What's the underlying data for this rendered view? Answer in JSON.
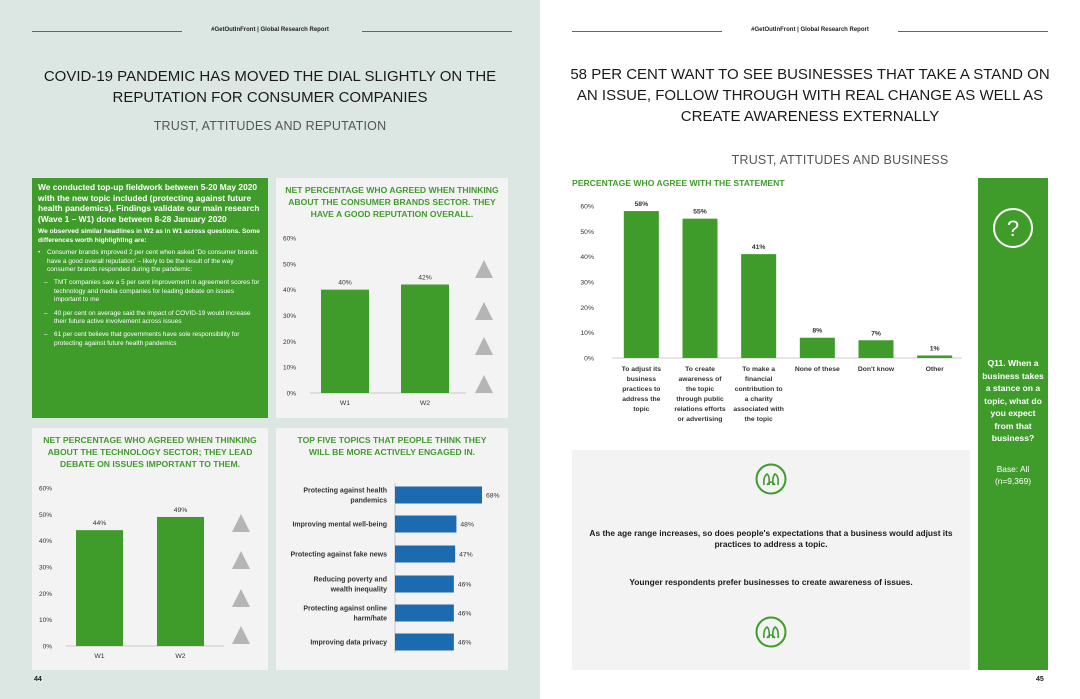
{
  "header": {
    "left": "#GetOutInFront | Global Research Report",
    "right": "#GetOutInFront | Global Research Report"
  },
  "left": {
    "title_line1": "COVID-19 PANDEMIC HAS MOVED THE DIAL SLIGHTLY ON THE",
    "title_line2": "REPUTATION FOR CONSUMER COMPANIES",
    "section": "TRUST, ATTITUDES AND REPUTATION",
    "page_number": "44",
    "box": {
      "intro": "We conducted top-up fieldwork between 5-20 May 2020 with the new topic included (protecting against future health pandemics). Findings validate our main research (Wave 1 – W1) done between 8-28 January 2020",
      "subhead": "We observed similar headlines in W2 as in W1 across questions. Some differences worth highlighting are:",
      "bullet": "Consumer brands improved 2 per cent when asked 'Do consumer brands have a good overall reputation' – likely to be the result of the way consumer brands responded during the pandemic:",
      "sub1": "TMT companies saw a 5 per cent improvement in agreement scores for technology and media companies for leading debate on issues important to me",
      "sub2": "40 per cent on average said the impact of COVID-19 would increase their future active involvement across issues",
      "sub3": "61 per cent believe that governments have sole responsibility for protecting against future health pandemics"
    }
  },
  "right": {
    "title_line1": "58 PER CENT WANT TO SEE BUSINESSES THAT TAKE A STAND ON",
    "title_line2": "AN ISSUE, FOLLOW THROUGH WITH REAL CHANGE AS WELL AS",
    "title_line3": "CREATE AWARENESS EXTERNALLY",
    "section": "TRUST, ATTITUDES AND BUSINESS",
    "page_number": "45",
    "insight1": "As the age range increases, so does people's expectations that a business would adjust its practices to address a topic.",
    "insight2": "Younger respondents prefer businesses to create awareness of issues.",
    "question": "Q11. When a business takes a stance on a topic, what do you expect from that business?",
    "base": "Base: All (n=9,369)"
  },
  "colors": {
    "green": "#3f9c2b",
    "blue": "#1c6bb0",
    "panel": "#f3f3f3",
    "arrow": "#b5b5b5"
  },
  "icons": [
    "question-mark-icon",
    "people-icon",
    "up-arrow-icon"
  ],
  "chart_data": [
    {
      "id": "consumer",
      "type": "bar",
      "title": "NET PERCENTAGE WHO AGREED WHEN THINKING ABOUT THE CONSUMER BRANDS SECTOR. THEY HAVE A GOOD REPUTATION OVERALL.",
      "categories": [
        "W1",
        "W2"
      ],
      "values": [
        40,
        42
      ],
      "value_labels": [
        "40%",
        "42%"
      ],
      "yticks": [
        "0%",
        "10%",
        "20%",
        "30%",
        "40%",
        "50%",
        "60%"
      ],
      "ylim": [
        0,
        60
      ]
    },
    {
      "id": "technology",
      "type": "bar",
      "title": "NET PERCENTAGE WHO AGREED WHEN THINKING ABOUT THE TECHNOLOGY SECTOR; THEY LEAD DEBATE ON ISSUES IMPORTANT TO THEM.",
      "categories": [
        "W1",
        "W2"
      ],
      "values": [
        44,
        49
      ],
      "value_labels": [
        "44%",
        "49%"
      ],
      "yticks": [
        "0%",
        "10%",
        "20%",
        "30%",
        "40%",
        "50%",
        "60%"
      ],
      "ylim": [
        0,
        60
      ]
    },
    {
      "id": "topics",
      "type": "bar",
      "orientation": "horizontal",
      "title": "TOP FIVE TOPICS THAT PEOPLE THINK THEY WILL BE MORE ACTIVELY ENGAGED IN.",
      "categories": [
        [
          "Protecting against health",
          "pandemics"
        ],
        [
          "Improving mental well-being"
        ],
        [
          "Protecting against fake news"
        ],
        [
          "Reducing poverty and",
          "wealth inequality"
        ],
        [
          "Protecting against online",
          "harm/hate"
        ],
        [
          "Improving data privacy"
        ]
      ],
      "values": [
        68,
        48,
        47,
        46,
        46,
        46
      ],
      "value_labels": [
        "68%",
        "48%",
        "47%",
        "46%",
        "46%",
        "46%"
      ],
      "xlim": [
        0,
        68
      ]
    },
    {
      "id": "statement",
      "type": "bar",
      "title": "PERCENTAGE WHO AGREE WITH THE STATEMENT",
      "categories": [
        [
          "To adjust its",
          "business",
          "practices to",
          "address the",
          "topic"
        ],
        [
          "To create",
          "awareness of",
          "the topic",
          "through public",
          "relations efforts",
          "or advertising"
        ],
        [
          "To make a",
          "financial",
          "contribution to",
          "a charity",
          "associated with",
          "the topic"
        ],
        [
          "None of these"
        ],
        [
          "Don't know"
        ],
        [
          "Other"
        ]
      ],
      "values": [
        58,
        55,
        41,
        8,
        7,
        1
      ],
      "value_labels": [
        "58%",
        "55%",
        "41%",
        "8%",
        "7%",
        "1%"
      ],
      "yticks": [
        "0%",
        "10%",
        "20%",
        "30%",
        "40%",
        "50%",
        "60%"
      ],
      "ylim": [
        0,
        60
      ]
    }
  ]
}
